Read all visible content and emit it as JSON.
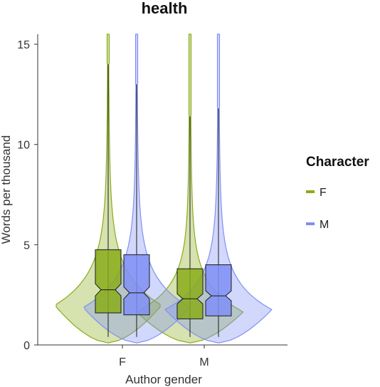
{
  "chart_data": {
    "type": "violin",
    "title": "health",
    "xlabel": "Author gender",
    "ylabel": "Words per thousand",
    "categories": [
      "F",
      "M"
    ],
    "ylim": [
      0,
      15.5
    ],
    "yticks": [
      0,
      5,
      10,
      15
    ],
    "legend": {
      "title": "Character",
      "position": "right"
    },
    "series": [
      {
        "name": "F",
        "color": "#8aab1a",
        "boxes": [
          {
            "category": "F",
            "whisker_low": 0.4,
            "q1": 1.6,
            "median": 2.75,
            "q3": 4.75,
            "whisker_high": 14.0,
            "notch_low": 2.45,
            "notch_high": 3.05,
            "violin_max": 15.5
          },
          {
            "category": "M",
            "whisker_low": 0.4,
            "q1": 1.3,
            "median": 2.3,
            "q3": 3.8,
            "whisker_high": 11.4,
            "notch_low": 2.05,
            "notch_high": 2.55,
            "violin_max": 15.5
          }
        ]
      },
      {
        "name": "M",
        "color": "#7f8ff5",
        "boxes": [
          {
            "category": "F",
            "whisker_low": 0.4,
            "q1": 1.5,
            "median": 2.6,
            "q3": 4.5,
            "whisker_high": 13.0,
            "notch_low": 2.3,
            "notch_high": 2.9,
            "violin_max": 15.5
          },
          {
            "category": "M",
            "whisker_low": 0.4,
            "q1": 1.45,
            "median": 2.45,
            "q3": 4.0,
            "whisker_high": 11.8,
            "notch_low": 2.2,
            "notch_high": 2.7,
            "violin_max": 15.5
          }
        ]
      }
    ],
    "grid": false
  }
}
